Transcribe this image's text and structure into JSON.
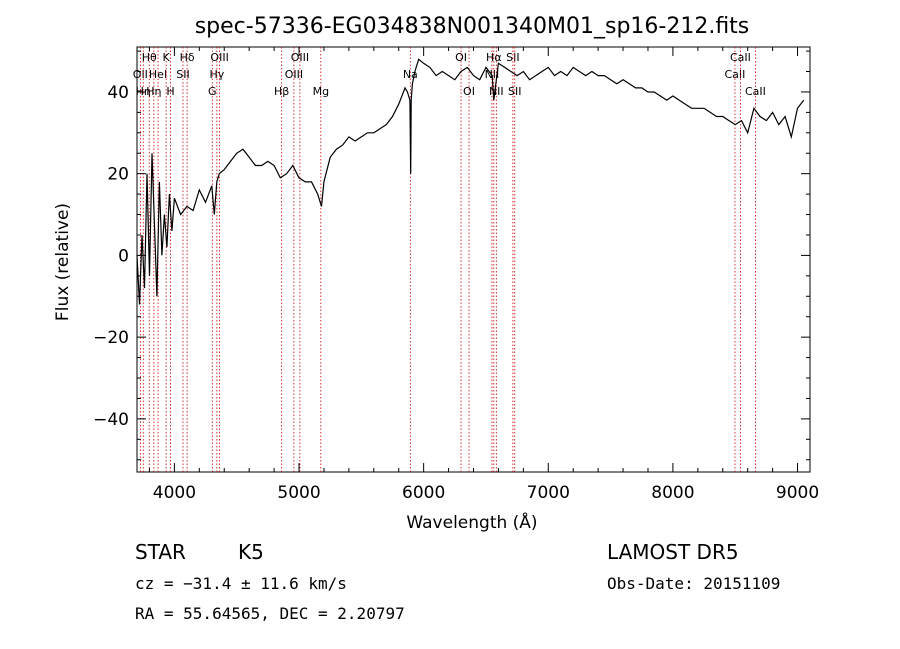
{
  "chart_data": {
    "type": "line",
    "title": "spec-57336-EG034838N001340M01_sp16-212.fits",
    "xlabel": "Wavelength (Å)",
    "ylabel": "Flux (relative)",
    "xlim": [
      3700,
      9100
    ],
    "ylim": [
      -53,
      51
    ],
    "x_ticks": [
      4000,
      5000,
      6000,
      7000,
      8000,
      9000
    ],
    "y_ticks": [
      -40,
      -20,
      0,
      20,
      40
    ],
    "grid": false,
    "series": [
      {
        "x": [
          3700,
          3720,
          3740,
          3760,
          3780,
          3800,
          3820,
          3840,
          3860,
          3880,
          3900,
          3920,
          3940,
          3960,
          3980,
          4000,
          4050,
          4100,
          4150,
          4200,
          4250,
          4300,
          4320,
          4340,
          4360,
          4400,
          4450,
          4500,
          4550,
          4600,
          4650,
          4700,
          4750,
          4800,
          4850,
          4900,
          4950,
          5000,
          5050,
          5100,
          5150,
          5180,
          5200,
          5250,
          5300,
          5350,
          5400,
          5450,
          5500,
          5550,
          5600,
          5650,
          5700,
          5750,
          5800,
          5850,
          5870,
          5890,
          5896,
          5900,
          5910,
          5930,
          5960,
          6000,
          6050,
          6100,
          6150,
          6200,
          6250,
          6300,
          6350,
          6400,
          6450,
          6500,
          6550,
          6563,
          6600,
          6650,
          6700,
          6750,
          6800,
          6850,
          6900,
          6950,
          7000,
          7050,
          7100,
          7150,
          7200,
          7250,
          7300,
          7350,
          7400,
          7450,
          7500,
          7550,
          7600,
          7650,
          7700,
          7750,
          7800,
          7850,
          7900,
          7950,
          8000,
          8050,
          8100,
          8150,
          8200,
          8250,
          8300,
          8350,
          8400,
          8450,
          8500,
          8550,
          8600,
          8650,
          8700,
          8750,
          8800,
          8850,
          8900,
          8950,
          9000,
          9050
        ],
        "values": [
          0,
          -12,
          5,
          -8,
          20,
          -5,
          25,
          8,
          -10,
          18,
          0,
          10,
          2,
          15,
          6,
          14,
          10,
          12,
          11,
          16,
          13,
          17,
          10,
          18,
          20,
          21,
          23,
          25,
          26,
          24,
          22,
          22,
          23,
          22,
          19,
          20,
          22,
          19,
          18,
          18,
          15,
          12,
          18,
          24,
          26,
          27,
          29,
          28,
          29,
          30,
          30,
          31,
          32,
          34,
          37,
          41,
          40,
          38,
          20,
          38,
          42,
          45,
          48,
          47,
          46,
          44,
          45,
          44,
          43,
          45,
          46,
          44,
          43,
          46,
          44,
          38,
          47,
          46,
          45,
          44,
          45,
          43,
          44,
          45,
          46,
          44,
          45,
          44,
          46,
          45,
          44,
          45,
          44,
          44,
          43,
          42,
          43,
          42,
          41,
          41,
          40,
          40,
          39,
          38,
          39,
          38,
          37,
          36,
          36,
          36,
          35,
          34,
          34,
          33,
          32,
          33,
          30,
          36,
          34,
          33,
          35,
          32,
          34,
          29,
          36,
          38
        ]
      }
    ],
    "line_markers": [
      {
        "wl": 3727,
        "label": "OII",
        "row": 1
      },
      {
        "wl": 3750,
        "label": "Hη",
        "row": 2
      },
      {
        "wl": 3798,
        "label": "Hθ",
        "row": 0
      },
      {
        "wl": 3835,
        "label": "Hη",
        "row": 2
      },
      {
        "wl": 3869,
        "label": "HeI",
        "row": 1
      },
      {
        "wl": 3934,
        "label": "K",
        "row": 0
      },
      {
        "wl": 3969,
        "label": "H",
        "row": 2
      },
      {
        "wl": 4069,
        "label": "SII",
        "row": 1
      },
      {
        "wl": 4102,
        "label": "Hδ",
        "row": 0
      },
      {
        "wl": 4304,
        "label": "G",
        "row": 2
      },
      {
        "wl": 4341,
        "label": "Hγ",
        "row": 1
      },
      {
        "wl": 4363,
        "label": "OIII",
        "row": 0
      },
      {
        "wl": 4861,
        "label": "Hβ",
        "row": 2
      },
      {
        "wl": 4959,
        "label": "OIII",
        "row": 1
      },
      {
        "wl": 5007,
        "label": "OIII",
        "row": 0
      },
      {
        "wl": 5175,
        "label": "Mg",
        "row": 2
      },
      {
        "wl": 5893,
        "label": "Na",
        "row": 1
      },
      {
        "wl": 6300,
        "label": "OI",
        "row": 0
      },
      {
        "wl": 6364,
        "label": "OI",
        "row": 2
      },
      {
        "wl": 6548,
        "label": "NII",
        "row": 1
      },
      {
        "wl": 6563,
        "label": "Hα",
        "row": 0
      },
      {
        "wl": 6583,
        "label": "NII",
        "row": 2
      },
      {
        "wl": 6716,
        "label": "SII",
        "row": 0
      },
      {
        "wl": 6731,
        "label": "SII",
        "row": 2
      },
      {
        "wl": 8498,
        "label": "CaII",
        "row": 1
      },
      {
        "wl": 8542,
        "label": "CaII",
        "row": 0
      },
      {
        "wl": 8662,
        "label": "CaII",
        "row": 2
      }
    ]
  },
  "info": {
    "class": "STAR",
    "subclass": "K5",
    "survey": "LAMOST DR5",
    "cz": "cz = −31.4 ± 11.6 km/s",
    "obs_date": "Obs-Date: 20151109",
    "radec": "RA =  55.64565, DEC =   2.20797"
  }
}
